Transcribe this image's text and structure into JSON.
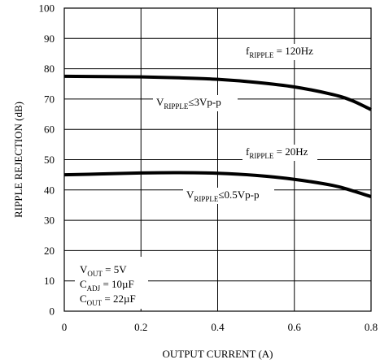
{
  "chart_data": {
    "type": "line",
    "title": "",
    "xlabel": "OUTPUT CURRENT (A)",
    "ylabel": "RIPPLE REJECTION (dB)",
    "xlim": [
      0,
      0.8
    ],
    "ylim": [
      0,
      100
    ],
    "xticks": [
      0,
      0.2,
      0.4,
      0.6,
      0.8
    ],
    "xtick_labels": [
      "0",
      "0.2",
      "0.4",
      "0.6",
      "0.8"
    ],
    "yticks": [
      0,
      10,
      20,
      30,
      40,
      50,
      60,
      70,
      80,
      90,
      100
    ],
    "ytick_labels": [
      "0",
      "10",
      "20",
      "30",
      "40",
      "50",
      "60",
      "70",
      "80",
      "90",
      "100"
    ],
    "grid": true,
    "series": [
      {
        "x": [
          0,
          0.1,
          0.2,
          0.3,
          0.4,
          0.5,
          0.6,
          0.7,
          0.75,
          0.8
        ],
        "y": [
          77.5,
          77.4,
          77.3,
          77.0,
          76.5,
          75.5,
          74.0,
          71.5,
          69.5,
          66.5
        ],
        "color": "#000000"
      },
      {
        "x": [
          0,
          0.1,
          0.2,
          0.3,
          0.4,
          0.5,
          0.6,
          0.7,
          0.75,
          0.8
        ],
        "y": [
          45.0,
          45.3,
          45.6,
          45.7,
          45.5,
          44.8,
          43.5,
          41.5,
          39.8,
          37.8
        ],
        "color": "#000000"
      }
    ],
    "annotations": [
      {
        "id": "f120",
        "main": "f",
        "sub": "RIPPLE",
        "tail": " = 120Hz"
      },
      {
        "id": "v3",
        "main": "V",
        "sub": "RIPPLE",
        "tail": "≤3Vp-p"
      },
      {
        "id": "f20",
        "main": "f",
        "sub": "RIPPLE",
        "tail": " = 20Hz"
      },
      {
        "id": "v05",
        "main": "V",
        "sub": "RIPPLE",
        "tail": "≤0.5Vp-p"
      }
    ],
    "conditions": [
      {
        "main": "V",
        "sub": "OUT",
        "tail": " = 5V"
      },
      {
        "main": "C",
        "sub": "ADJ",
        "tail": " = 10µF"
      },
      {
        "main": "C",
        "sub": "OUT",
        "tail": " = 22µF"
      }
    ]
  }
}
